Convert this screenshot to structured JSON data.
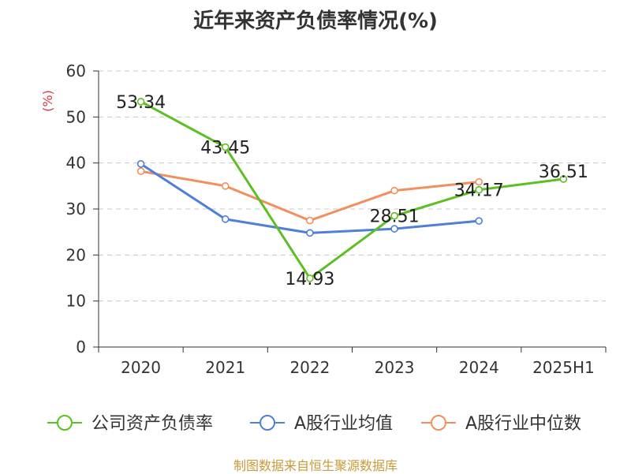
{
  "chart_data": {
    "type": "line",
    "title": "近年来资产负债率情况(%)",
    "ylabel": "(%)",
    "xlabel": "",
    "categories": [
      "2020",
      "2021",
      "2022",
      "2023",
      "2024",
      "2025H1"
    ],
    "ylim": [
      0,
      60
    ],
    "yticks": [
      "0",
      "10",
      "20",
      "30",
      "40",
      "50",
      "60"
    ],
    "grid": true,
    "legend_position": "bottom",
    "series": [
      {
        "name": "公司资产负债率",
        "color": "#5cbf23",
        "values": [
          53.34,
          43.45,
          14.93,
          28.51,
          34.17,
          36.51
        ],
        "labels": [
          "53.34",
          "43.45",
          "14.93",
          "28.51",
          "34.17",
          "36.51"
        ]
      },
      {
        "name": "A股行业均值",
        "color": "#4f7fd6",
        "values": [
          39.8,
          27.8,
          24.8,
          25.7,
          27.4,
          null
        ]
      },
      {
        "name": "A股行业中位数",
        "color": "#f28f5c",
        "values": [
          38.2,
          35.0,
          27.5,
          34.0,
          35.9,
          null
        ]
      }
    ]
  },
  "source": "制图数据来自恒生聚源数据库"
}
